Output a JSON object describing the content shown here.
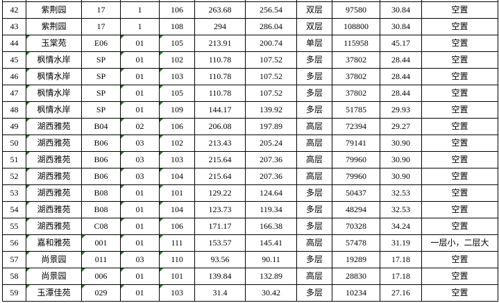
{
  "table": {
    "rows": [
      {
        "cells": [
          "42",
          "紫荆园",
          "17",
          "1",
          "106",
          "263.68",
          "256.54",
          "双层",
          "97580",
          "30.84",
          "空置"
        ],
        "marks": []
      },
      {
        "cells": [
          "43",
          "紫荆园",
          "17",
          "1",
          "108",
          "294",
          "286.04",
          "双层",
          "108800",
          "30.84",
          "空置"
        ],
        "marks": []
      },
      {
        "cells": [
          "44",
          "玉棠苑",
          "E06",
          "01",
          "105",
          "213.91",
          "200.74",
          "单层",
          "115958",
          "45.17",
          "空置"
        ],
        "marks": [
          1,
          3,
          4
        ]
      },
      {
        "cells": [
          "45",
          "枫情水岸",
          "SP",
          "01",
          "102",
          "110.78",
          "107.52",
          "多层",
          "37802",
          "28.44",
          "空置"
        ],
        "marks": [
          1,
          3,
          4
        ]
      },
      {
        "cells": [
          "46",
          "枫情水岸",
          "SP",
          "01",
          "103",
          "110.78",
          "107.52",
          "多层",
          "37802",
          "28.44",
          "空置"
        ],
        "marks": [
          1,
          3,
          4
        ]
      },
      {
        "cells": [
          "47",
          "枫情水岸",
          "SP",
          "01",
          "105",
          "110.78",
          "107.52",
          "多层",
          "37802",
          "28.44",
          "空置"
        ],
        "marks": [
          1,
          3,
          4
        ]
      },
      {
        "cells": [
          "48",
          "枫情水岸",
          "SP",
          "01",
          "109",
          "144.17",
          "139.92",
          "多层",
          "51785",
          "29.93",
          "空置"
        ],
        "marks": [
          1,
          3,
          4
        ]
      },
      {
        "cells": [
          "49",
          "湖西雅苑",
          "B04",
          "02",
          "106",
          "206.08",
          "197.89",
          "高层",
          "72394",
          "29.27",
          "空置"
        ],
        "marks": [
          1,
          3,
          4
        ]
      },
      {
        "cells": [
          "50",
          "湖西雅苑",
          "B06",
          "03",
          "102",
          "213.43",
          "205.24",
          "高层",
          "79141",
          "30.90",
          "空置"
        ],
        "marks": [
          1,
          3,
          4
        ]
      },
      {
        "cells": [
          "51",
          "湖西雅苑",
          "B06",
          "03",
          "103",
          "215.64",
          "207.36",
          "高层",
          "79960",
          "30.90",
          "空置"
        ],
        "marks": [
          1,
          3,
          4
        ]
      },
      {
        "cells": [
          "52",
          "湖西雅苑",
          "B06",
          "03",
          "104",
          "215.64",
          "207.36",
          "高层",
          "79960",
          "30.90",
          "空置"
        ],
        "marks": [
          1,
          3,
          4
        ]
      },
      {
        "cells": [
          "53",
          "湖西雅苑",
          "B08",
          "01",
          "101",
          "129.22",
          "124.64",
          "多层",
          "50437",
          "32.53",
          "空置"
        ],
        "marks": [
          1,
          3,
          4
        ]
      },
      {
        "cells": [
          "54",
          "湖西雅苑",
          "B08",
          "01",
          "104",
          "123.73",
          "119.34",
          "多层",
          "48294",
          "32.53",
          "空置"
        ],
        "marks": [
          1,
          3,
          4
        ]
      },
      {
        "cells": [
          "55",
          "湖西雅苑",
          "C08",
          "01",
          "106",
          "171.17",
          "166.38",
          "多层",
          "70328",
          "34.24",
          "空置"
        ],
        "marks": [
          1,
          3,
          4
        ]
      },
      {
        "cells": [
          "56",
          "嘉和雅苑",
          "001",
          "01",
          "111",
          "153.57",
          "145.41",
          "高层",
          "57478",
          "31.19",
          "一层小，二层大"
        ],
        "marks": [
          1,
          2,
          3,
          4
        ]
      },
      {
        "cells": [
          "57",
          "尚景园",
          "011",
          "03",
          "110",
          "93.56",
          "90.11",
          "多层",
          "19289",
          "17.18",
          "空置"
        ],
        "marks": [
          1,
          2,
          3,
          4
        ]
      },
      {
        "cells": [
          "58",
          "尚景园",
          "006",
          "01",
          "101",
          "139.84",
          "132.89",
          "高层",
          "28830",
          "17.18",
          "空置"
        ],
        "marks": [
          1,
          2,
          3,
          4
        ]
      },
      {
        "cells": [
          "59",
          "玉潭佳苑",
          "029",
          "01",
          "103",
          "31.4",
          "30.42",
          "多层",
          "10234",
          "27.16",
          "空置"
        ],
        "marks": [
          1,
          2,
          3,
          4
        ]
      }
    ]
  },
  "colors": {
    "grid": "#000000",
    "text": "#000000",
    "error_triangle": "#267326",
    "background": "#ffffff"
  }
}
